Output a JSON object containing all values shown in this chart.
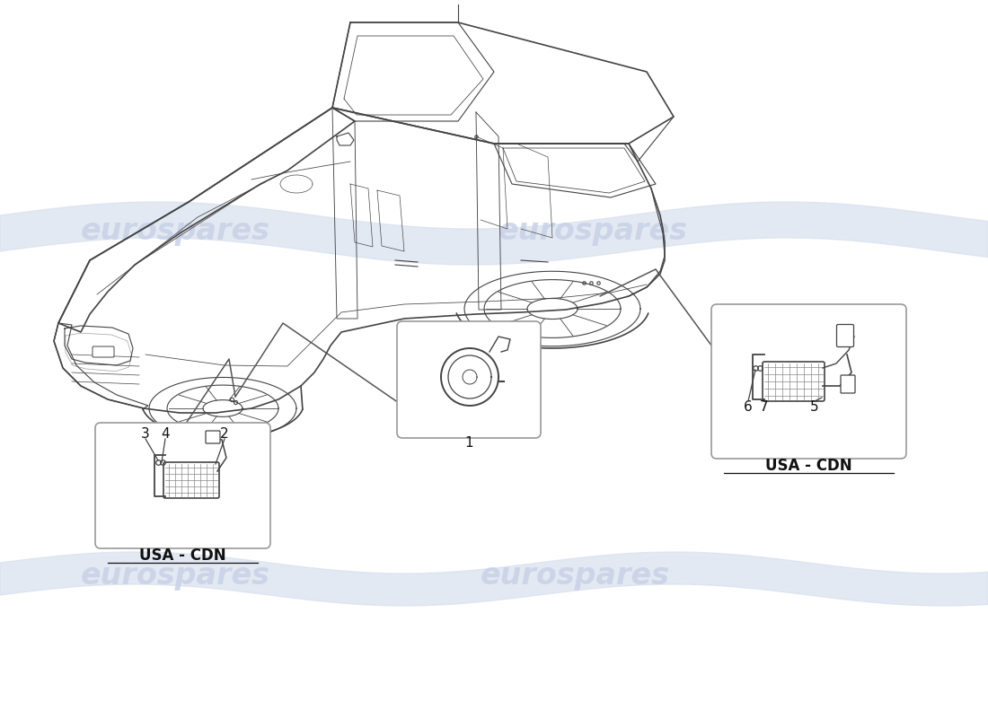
{
  "bg_color": "#ffffff",
  "car_color": "#444444",
  "box_edge_color": "#999999",
  "label_color": "#111111",
  "watermark_color": "#c8d2e6",
  "wave_color": "#d8e0ee",
  "line_color": "#555555",
  "part1_label": "1",
  "part_labels_left": [
    "3",
    "4",
    "2"
  ],
  "part_labels_right": [
    "6",
    "7",
    "5"
  ],
  "usa_cdn": "USA - CDN",
  "watermark_word": "eurospares"
}
